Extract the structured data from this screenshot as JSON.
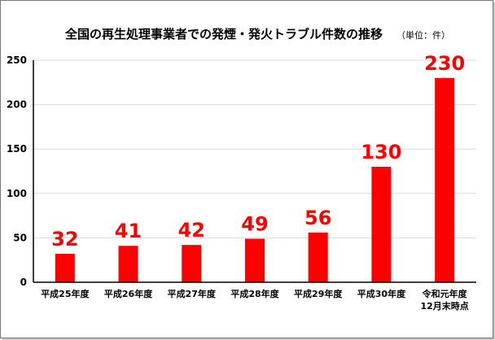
{
  "chart_data": {
    "type": "bar",
    "title": "全国の再生処理事業者での発煙・発火トラブル件数の推移",
    "unit_note": "（単位：件）",
    "categories": [
      [
        "平成25年度"
      ],
      [
        "平成26年度"
      ],
      [
        "平成27年度"
      ],
      [
        "平成28年度"
      ],
      [
        "平成29年度"
      ],
      [
        "平成30年度"
      ],
      [
        "令和元年度",
        "12月末時点"
      ]
    ],
    "values": [
      32,
      41,
      42,
      49,
      56,
      130,
      230
    ],
    "ylim": [
      0,
      250
    ],
    "yticks": [
      0,
      50,
      100,
      150,
      200,
      250
    ],
    "grid": true,
    "legend": "none",
    "bar_color": "#ff0000",
    "label_color": "#ff0000",
    "grid_color": "#d9d9d9",
    "axis_color": "#000000"
  }
}
